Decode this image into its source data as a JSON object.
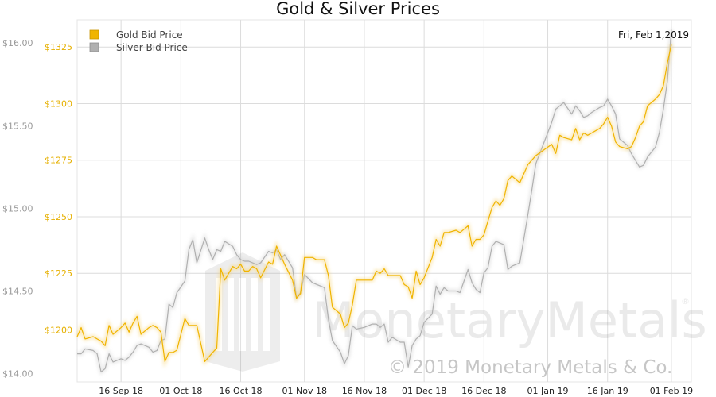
{
  "chart_data": {
    "type": "line",
    "title": "Gold & Silver Prices",
    "date_label": "Fri, Feb 1,2019",
    "watermark": {
      "brand": "MonetaryMetals",
      "registered_mark": "®",
      "copyright": "© 2019 Monetary Metals & Co."
    },
    "x_ticks": [
      "16 Sep 18",
      "01 Oct 18",
      "16 Oct 18",
      "01 Nov 18",
      "16 Nov 18",
      "01 Dec 18",
      "16 Dec 18",
      "01 Jan 19",
      "16 Jan 19",
      "01 Feb 19"
    ],
    "x_tick_dates": [
      "2018-09-16",
      "2018-10-01",
      "2018-10-16",
      "2018-11-01",
      "2018-11-16",
      "2018-12-01",
      "2018-12-16",
      "2019-01-01",
      "2019-01-16",
      "2019-02-01"
    ],
    "xlim": [
      "2018-09-05",
      "2019-02-06"
    ],
    "left_axis": {
      "ticks": [
        "$1200",
        "$1225",
        "$1250",
        "$1275",
        "$1300",
        "$1325"
      ],
      "tick_values": [
        1200,
        1225,
        1250,
        1275,
        1300,
        1325
      ],
      "ylim": [
        1177,
        1337
      ],
      "color": "#e6b000"
    },
    "right_axis": {
      "ticks": [
        "$14.00",
        "$14.50",
        "$15.00",
        "$15.50",
        "$16.00"
      ],
      "tick_values": [
        14.0,
        14.5,
        15.0,
        15.5,
        16.0
      ],
      "ylim": [
        13.95,
        16.14
      ],
      "color": "#999999"
    },
    "legend_position": "top-left",
    "grid": true,
    "series": [
      {
        "name": "Gold Bid Price",
        "axis": "left",
        "color": "#f0b400",
        "points": [
          [
            "2018-09-05",
            1197
          ],
          [
            "2018-09-06",
            1201
          ],
          [
            "2018-09-07",
            1196
          ],
          [
            "2018-09-09",
            1197
          ],
          [
            "2018-09-10",
            1196
          ],
          [
            "2018-09-11",
            1195
          ],
          [
            "2018-09-12",
            1193
          ],
          [
            "2018-09-13",
            1202
          ],
          [
            "2018-09-14",
            1198
          ],
          [
            "2018-09-16",
            1201
          ],
          [
            "2018-09-17",
            1203
          ],
          [
            "2018-09-18",
            1199
          ],
          [
            "2018-09-19",
            1203
          ],
          [
            "2018-09-20",
            1206
          ],
          [
            "2018-09-21",
            1198
          ],
          [
            "2018-09-23",
            1201
          ],
          [
            "2018-09-24",
            1202
          ],
          [
            "2018-09-25",
            1201
          ],
          [
            "2018-09-26",
            1199
          ],
          [
            "2018-09-27",
            1186
          ],
          [
            "2018-09-28",
            1190
          ],
          [
            "2018-09-29",
            1190
          ],
          [
            "2018-09-30",
            1191
          ],
          [
            "2018-10-02",
            1205
          ],
          [
            "2018-10-03",
            1202
          ],
          [
            "2018-10-04",
            1202
          ],
          [
            "2018-10-05",
            1202
          ],
          [
            "2018-10-07",
            1186
          ],
          [
            "2018-10-08",
            1188
          ],
          [
            "2018-10-09",
            1190
          ],
          [
            "2018-10-10",
            1192
          ],
          [
            "2018-10-11",
            1227
          ],
          [
            "2018-10-12",
            1222
          ],
          [
            "2018-10-14",
            1228
          ],
          [
            "2018-10-15",
            1227
          ],
          [
            "2018-10-16",
            1229
          ],
          [
            "2018-10-17",
            1226
          ],
          [
            "2018-10-18",
            1226
          ],
          [
            "2018-10-19",
            1228
          ],
          [
            "2018-10-20",
            1227
          ],
          [
            "2018-10-21",
            1223
          ],
          [
            "2018-10-23",
            1230
          ],
          [
            "2018-10-24",
            1229
          ],
          [
            "2018-10-25",
            1237
          ],
          [
            "2018-10-26",
            1233
          ],
          [
            "2018-10-27",
            1229
          ],
          [
            "2018-10-29",
            1222
          ],
          [
            "2018-10-30",
            1214
          ],
          [
            "2018-10-31",
            1216
          ],
          [
            "2018-11-01",
            1232
          ],
          [
            "2018-11-03",
            1232
          ],
          [
            "2018-11-04",
            1231
          ],
          [
            "2018-11-05",
            1231
          ],
          [
            "2018-11-06",
            1231
          ],
          [
            "2018-11-07",
            1224
          ],
          [
            "2018-11-08",
            1210
          ],
          [
            "2018-11-10",
            1207
          ],
          [
            "2018-11-11",
            1201
          ],
          [
            "2018-11-12",
            1203
          ],
          [
            "2018-11-13",
            1211
          ],
          [
            "2018-11-14",
            1222
          ],
          [
            "2018-11-16",
            1222
          ],
          [
            "2018-11-18",
            1222
          ],
          [
            "2018-11-19",
            1226
          ],
          [
            "2018-11-20",
            1225
          ],
          [
            "2018-11-21",
            1227
          ],
          [
            "2018-11-22",
            1224
          ],
          [
            "2018-11-23",
            1224
          ],
          [
            "2018-11-25",
            1224
          ],
          [
            "2018-11-26",
            1220
          ],
          [
            "2018-11-27",
            1219
          ],
          [
            "2018-11-28",
            1214
          ],
          [
            "2018-11-29",
            1226
          ],
          [
            "2018-11-30",
            1220
          ],
          [
            "2018-12-01",
            1223
          ],
          [
            "2018-12-03",
            1232
          ],
          [
            "2018-12-04",
            1240
          ],
          [
            "2018-12-05",
            1237
          ],
          [
            "2018-12-06",
            1243
          ],
          [
            "2018-12-07",
            1243
          ],
          [
            "2018-12-09",
            1244
          ],
          [
            "2018-12-10",
            1243
          ],
          [
            "2018-12-12",
            1246
          ],
          [
            "2018-12-13",
            1237
          ],
          [
            "2018-12-14",
            1240
          ],
          [
            "2018-12-15",
            1240
          ],
          [
            "2018-12-16",
            1242
          ],
          [
            "2018-12-17",
            1248
          ],
          [
            "2018-12-18",
            1254
          ],
          [
            "2018-12-19",
            1257
          ],
          [
            "2018-12-20",
            1255
          ],
          [
            "2018-12-21",
            1258
          ],
          [
            "2018-12-22",
            1266
          ],
          [
            "2018-12-23",
            1268
          ],
          [
            "2018-12-25",
            1265
          ],
          [
            "2018-12-27",
            1273
          ],
          [
            "2018-12-28",
            1275
          ],
          [
            "2018-12-29",
            1277
          ],
          [
            "2019-01-02",
            1282
          ],
          [
            "2019-01-03",
            1278
          ],
          [
            "2019-01-04",
            1286
          ],
          [
            "2019-01-05",
            1285
          ],
          [
            "2019-01-07",
            1284
          ],
          [
            "2019-01-08",
            1289
          ],
          [
            "2019-01-09",
            1284
          ],
          [
            "2019-01-10",
            1287
          ],
          [
            "2019-01-11",
            1286
          ],
          [
            "2019-01-12",
            1287
          ],
          [
            "2019-01-14",
            1289
          ],
          [
            "2019-01-15",
            1291
          ],
          [
            "2019-01-16",
            1294
          ],
          [
            "2019-01-17",
            1290
          ],
          [
            "2019-01-18",
            1283
          ],
          [
            "2019-01-19",
            1281
          ],
          [
            "2019-01-21",
            1280
          ],
          [
            "2019-01-22",
            1281
          ],
          [
            "2019-01-23",
            1285
          ],
          [
            "2019-01-24",
            1290
          ],
          [
            "2019-01-25",
            1292
          ],
          [
            "2019-01-26",
            1299
          ],
          [
            "2019-01-28",
            1302
          ],
          [
            "2019-01-29",
            1304
          ],
          [
            "2019-01-30",
            1308
          ],
          [
            "2019-01-31",
            1318
          ],
          [
            "2019-02-01",
            1326
          ]
        ]
      },
      {
        "name": "Silver Bid Price",
        "axis": "right",
        "color": "#b0b0b0",
        "points": [
          [
            "2018-09-05",
            14.12
          ],
          [
            "2018-09-06",
            14.12
          ],
          [
            "2018-09-07",
            14.15
          ],
          [
            "2018-09-09",
            14.14
          ],
          [
            "2018-09-10",
            14.12
          ],
          [
            "2018-09-11",
            14.01
          ],
          [
            "2018-09-12",
            14.03
          ],
          [
            "2018-09-13",
            14.12
          ],
          [
            "2018-09-14",
            14.07
          ],
          [
            "2018-09-16",
            14.09
          ],
          [
            "2018-09-17",
            14.08
          ],
          [
            "2018-09-18",
            14.1
          ],
          [
            "2018-09-19",
            14.13
          ],
          [
            "2018-09-20",
            14.17
          ],
          [
            "2018-09-21",
            14.18
          ],
          [
            "2018-09-23",
            14.16
          ],
          [
            "2018-09-24",
            14.13
          ],
          [
            "2018-09-25",
            14.14
          ],
          [
            "2018-09-26",
            14.2
          ],
          [
            "2018-09-27",
            14.21
          ],
          [
            "2018-09-28",
            14.42
          ],
          [
            "2018-09-29",
            14.4
          ],
          [
            "2018-09-30",
            14.49
          ],
          [
            "2018-10-02",
            14.56
          ],
          [
            "2018-10-03",
            14.75
          ],
          [
            "2018-10-04",
            14.81
          ],
          [
            "2018-10-05",
            14.67
          ],
          [
            "2018-10-07",
            14.82
          ],
          [
            "2018-10-08",
            14.75
          ],
          [
            "2018-10-09",
            14.69
          ],
          [
            "2018-10-10",
            14.75
          ],
          [
            "2018-10-11",
            14.74
          ],
          [
            "2018-10-12",
            14.8
          ],
          [
            "2018-10-14",
            14.77
          ],
          [
            "2018-10-15",
            14.72
          ],
          [
            "2018-10-16",
            14.69
          ],
          [
            "2018-10-17",
            14.68
          ],
          [
            "2018-10-18",
            14.68
          ],
          [
            "2018-10-19",
            14.67
          ],
          [
            "2018-10-20",
            14.66
          ],
          [
            "2018-10-21",
            14.67
          ],
          [
            "2018-10-23",
            14.74
          ],
          [
            "2018-10-24",
            14.73
          ],
          [
            "2018-10-25",
            14.75
          ],
          [
            "2018-10-26",
            14.69
          ],
          [
            "2018-10-27",
            14.72
          ],
          [
            "2018-10-29",
            14.64
          ],
          [
            "2018-10-30",
            14.46
          ],
          [
            "2018-10-31",
            14.49
          ],
          [
            "2018-11-01",
            14.6
          ],
          [
            "2018-11-03",
            14.55
          ],
          [
            "2018-11-04",
            14.54
          ],
          [
            "2018-11-05",
            14.53
          ],
          [
            "2018-11-06",
            14.52
          ],
          [
            "2018-11-07",
            14.33
          ],
          [
            "2018-11-08",
            14.2
          ],
          [
            "2018-11-10",
            14.13
          ],
          [
            "2018-11-11",
            14.06
          ],
          [
            "2018-11-12",
            14.11
          ],
          [
            "2018-11-13",
            14.29
          ],
          [
            "2018-11-14",
            14.27
          ],
          [
            "2018-11-16",
            14.28
          ],
          [
            "2018-11-18",
            14.3
          ],
          [
            "2018-11-19",
            14.3
          ],
          [
            "2018-11-20",
            14.28
          ],
          [
            "2018-11-21",
            14.3
          ],
          [
            "2018-11-22",
            14.19
          ],
          [
            "2018-11-23",
            14.22
          ],
          [
            "2018-11-25",
            14.19
          ],
          [
            "2018-11-26",
            14.19
          ],
          [
            "2018-11-27",
            14.04
          ],
          [
            "2018-11-28",
            14.17
          ],
          [
            "2018-11-29",
            14.21
          ],
          [
            "2018-11-30",
            14.23
          ],
          [
            "2018-12-01",
            14.31
          ],
          [
            "2018-12-03",
            14.36
          ],
          [
            "2018-12-04",
            14.53
          ],
          [
            "2018-12-05",
            14.48
          ],
          [
            "2018-12-06",
            14.52
          ],
          [
            "2018-12-07",
            14.5
          ],
          [
            "2018-12-09",
            14.5
          ],
          [
            "2018-12-10",
            14.49
          ],
          [
            "2018-12-12",
            14.63
          ],
          [
            "2018-12-13",
            14.55
          ],
          [
            "2018-12-14",
            14.51
          ],
          [
            "2018-12-15",
            14.49
          ],
          [
            "2018-12-16",
            14.61
          ],
          [
            "2018-12-17",
            14.64
          ],
          [
            "2018-12-18",
            14.77
          ],
          [
            "2018-12-19",
            14.8
          ],
          [
            "2018-12-20",
            14.79
          ],
          [
            "2018-12-21",
            14.78
          ],
          [
            "2018-12-22",
            14.63
          ],
          [
            "2018-12-23",
            14.65
          ],
          [
            "2018-12-25",
            14.67
          ],
          [
            "2018-12-27",
            14.96
          ],
          [
            "2018-12-28",
            15.11
          ],
          [
            "2018-12-29",
            15.27
          ],
          [
            "2019-01-02",
            15.52
          ],
          [
            "2019-01-03",
            15.6
          ],
          [
            "2019-01-04",
            15.62
          ],
          [
            "2019-01-05",
            15.64
          ],
          [
            "2019-01-07",
            15.57
          ],
          [
            "2019-01-08",
            15.62
          ],
          [
            "2019-01-09",
            15.59
          ],
          [
            "2019-01-10",
            15.55
          ],
          [
            "2019-01-11",
            15.56
          ],
          [
            "2019-01-12",
            15.58
          ],
          [
            "2019-01-14",
            15.61
          ],
          [
            "2019-01-15",
            15.62
          ],
          [
            "2019-01-16",
            15.66
          ],
          [
            "2019-01-17",
            15.62
          ],
          [
            "2019-01-18",
            15.57
          ],
          [
            "2019-01-19",
            15.42
          ],
          [
            "2019-01-21",
            15.38
          ],
          [
            "2019-01-22",
            15.33
          ],
          [
            "2019-01-23",
            15.29
          ],
          [
            "2019-01-24",
            15.25
          ],
          [
            "2019-01-25",
            15.26
          ],
          [
            "2019-01-26",
            15.31
          ],
          [
            "2019-01-28",
            15.37
          ],
          [
            "2019-01-29",
            15.46
          ],
          [
            "2019-01-30",
            15.6
          ],
          [
            "2019-01-31",
            15.77
          ],
          [
            "2019-02-01",
            16.08
          ]
        ]
      }
    ]
  }
}
